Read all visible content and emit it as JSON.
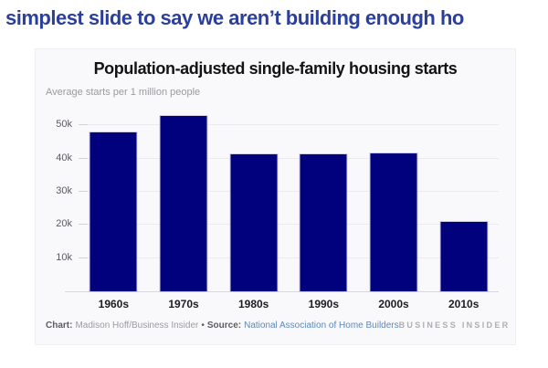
{
  "headline": {
    "text": "simplest slide to say we aren’t building enough ho",
    "color": "#2b3f9b"
  },
  "chart_data": {
    "type": "bar",
    "title": "Population-adjusted single-family housing starts",
    "subtitle": "Average starts per 1 million people",
    "categories": [
      "1960s",
      "1970s",
      "1980s",
      "1990s",
      "2000s",
      "2010s"
    ],
    "values": [
      47900,
      52900,
      41200,
      41400,
      41600,
      20800
    ],
    "xlabel": "",
    "ylabel": "Average starts per 1 million people",
    "ylim": [
      0,
      54500
    ],
    "yticks": [
      {
        "label": "10k",
        "value": 10000
      },
      {
        "label": "20k",
        "value": 20000
      },
      {
        "label": "30k",
        "value": 30000
      },
      {
        "label": "40k",
        "value": 40000
      },
      {
        "label": "50k",
        "value": 50000
      }
    ],
    "grid": "horizontal",
    "legend": "none",
    "bar_color": "#02017d"
  },
  "footer": {
    "chart_label": "Chart:",
    "chart_credit": "Madison Hoff/Business Insider",
    "separator": "•",
    "source_label": "Source:",
    "source_name": "National Association of Home Builders",
    "source_link_color": "#5d89ba",
    "logo": "BUSINESS INSIDER"
  }
}
